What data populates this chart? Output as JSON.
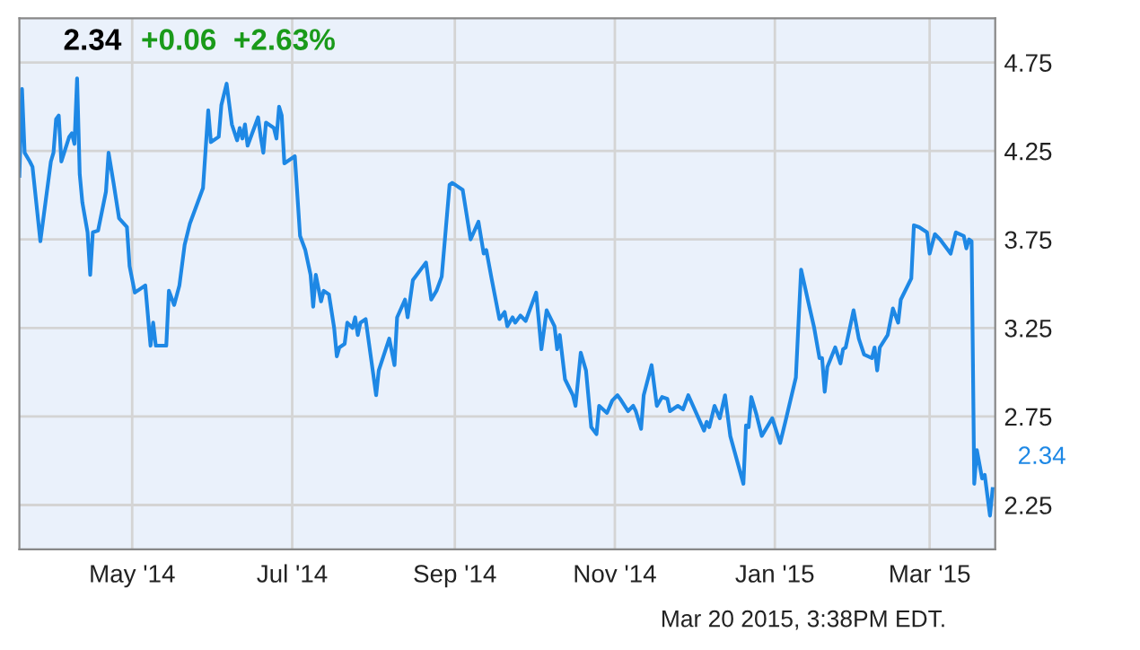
{
  "chart_data": {
    "type": "line",
    "title": "2.34",
    "subtitle": "+0.06  +2.63%",
    "annotations": [
      {
        "text": "2.34",
        "x": "2015-03-25",
        "y": 2.34
      },
      "Mar 20 2015, 3:38PM EDT."
    ],
    "series": [
      {
        "color": "#1e88e5",
        "x": [
          "2014-03-19",
          "2014-03-20",
          "2014-03-21",
          "2014-03-23",
          "2014-03-24",
          "2014-03-27",
          "2014-03-31",
          "2014-04-01",
          "2014-04-02",
          "2014-04-03",
          "2014-04-04",
          "2014-04-07",
          "2014-04-08",
          "2014-04-09",
          "2014-04-10",
          "2014-04-11",
          "2014-04-12",
          "2014-04-14",
          "2014-04-15",
          "2014-04-16",
          "2014-04-18",
          "2014-04-21",
          "2014-04-22",
          "2014-04-24",
          "2014-04-26",
          "2014-04-29",
          "2014-04-30",
          "2014-05-02",
          "2014-05-06",
          "2014-05-08",
          "2014-05-09",
          "2014-05-10",
          "2014-05-14",
          "2014-05-15",
          "2014-05-17",
          "2014-05-19",
          "2014-05-21",
          "2014-05-23",
          "2014-05-28",
          "2014-05-30",
          "2014-05-31",
          "2014-06-03",
          "2014-06-04",
          "2014-06-06",
          "2014-06-08",
          "2014-06-10",
          "2014-06-11",
          "2014-06-12",
          "2014-06-13",
          "2014-06-14",
          "2014-06-18",
          "2014-06-19",
          "2014-06-20",
          "2014-06-21",
          "2014-06-24",
          "2014-06-25",
          "2014-06-26",
          "2014-06-27",
          "2014-06-28",
          "2014-07-02",
          "2014-07-04",
          "2014-07-06",
          "2014-07-08",
          "2014-07-09",
          "2014-07-10",
          "2014-07-12",
          "2014-07-13",
          "2014-07-15",
          "2014-07-17",
          "2014-07-18",
          "2014-07-19",
          "2014-07-21",
          "2014-07-22",
          "2014-07-24",
          "2014-07-25",
          "2014-07-26",
          "2014-07-27",
          "2014-07-29",
          "2014-08-02",
          "2014-08-03",
          "2014-08-07",
          "2014-08-09",
          "2014-08-10",
          "2014-08-13",
          "2014-08-14",
          "2014-08-16",
          "2014-08-21",
          "2014-08-23",
          "2014-08-25",
          "2014-08-27",
          "2014-08-30",
          "2014-08-31",
          "2014-09-04",
          "2014-09-07",
          "2014-09-10",
          "2014-09-12",
          "2014-09-13",
          "2014-09-15",
          "2014-09-18",
          "2014-09-20",
          "2014-09-21",
          "2014-09-23",
          "2014-09-24",
          "2014-09-26",
          "2014-09-28",
          "2014-10-02",
          "2014-10-04",
          "2014-10-06",
          "2014-10-09",
          "2014-10-10",
          "2014-10-11",
          "2014-10-13",
          "2014-10-16",
          "2014-10-17",
          "2014-10-19",
          "2014-10-21",
          "2014-10-23",
          "2014-10-25",
          "2014-10-26",
          "2014-10-29",
          "2014-10-31",
          "2014-11-02",
          "2014-11-03",
          "2014-11-06",
          "2014-11-08",
          "2014-11-09",
          "2014-11-11",
          "2014-11-12",
          "2014-11-15",
          "2014-11-17",
          "2014-11-19",
          "2014-11-21",
          "2014-11-22",
          "2014-11-25",
          "2014-11-27",
          "2014-11-29",
          "2014-12-02",
          "2014-12-05",
          "2014-12-06",
          "2014-12-07",
          "2014-12-09",
          "2014-12-11",
          "2014-12-13",
          "2014-12-15",
          "2014-12-20",
          "2014-12-21",
          "2014-12-22",
          "2014-12-23",
          "2014-12-25",
          "2014-12-27",
          "2014-12-31",
          "2015-01-03",
          "2015-01-05",
          "2015-01-09",
          "2015-01-11",
          "2015-01-14",
          "2015-01-16",
          "2015-01-18",
          "2015-01-19",
          "2015-01-20",
          "2015-01-21",
          "2015-01-24",
          "2015-01-26",
          "2015-01-27",
          "2015-01-28",
          "2015-01-31",
          "2015-02-02",
          "2015-02-04",
          "2015-02-07",
          "2015-02-08",
          "2015-02-09",
          "2015-02-10",
          "2015-02-13",
          "2015-02-15",
          "2015-02-17",
          "2015-02-18",
          "2015-02-22",
          "2015-02-23",
          "2015-02-25",
          "2015-02-28",
          "2015-03-01",
          "2015-03-03",
          "2015-03-05",
          "2015-03-08",
          "2015-03-09",
          "2015-03-11",
          "2015-03-14",
          "2015-03-15",
          "2015-03-16",
          "2015-03-17",
          "2015-03-18",
          "2015-03-19",
          "2015-03-21",
          "2015-03-22",
          "2015-03-24",
          "2015-03-25"
        ],
        "values": [
          4.11,
          4.6,
          4.24,
          4.19,
          4.16,
          3.74,
          4.19,
          4.24,
          4.43,
          4.45,
          4.19,
          4.33,
          4.35,
          4.29,
          4.66,
          4.12,
          3.96,
          3.79,
          3.55,
          3.79,
          3.8,
          4.02,
          4.24,
          4.06,
          3.87,
          3.82,
          3.6,
          3.45,
          3.49,
          3.15,
          3.28,
          3.15,
          3.15,
          3.46,
          3.38,
          3.49,
          3.72,
          3.84,
          4.04,
          4.48,
          4.3,
          4.33,
          4.51,
          4.63,
          4.4,
          4.31,
          4.38,
          4.32,
          4.4,
          4.28,
          4.44,
          4.33,
          4.24,
          4.41,
          4.38,
          4.32,
          4.5,
          4.45,
          4.18,
          4.22,
          3.77,
          3.69,
          3.55,
          3.37,
          3.55,
          3.4,
          3.46,
          3.44,
          3.25,
          3.09,
          3.14,
          3.16,
          3.28,
          3.25,
          3.31,
          3.21,
          3.28,
          3.3,
          2.87,
          3.01,
          3.19,
          3.04,
          3.31,
          3.41,
          3.31,
          3.52,
          3.62,
          3.41,
          3.46,
          3.54,
          4.06,
          4.07,
          4.03,
          3.75,
          3.85,
          3.67,
          3.69,
          3.53,
          3.3,
          3.34,
          3.26,
          3.31,
          3.28,
          3.32,
          3.29,
          3.45,
          3.13,
          3.35,
          3.26,
          3.13,
          3.21,
          2.96,
          2.87,
          2.81,
          3.11,
          3.01,
          2.69,
          2.65,
          2.81,
          2.77,
          2.84,
          2.87,
          2.85,
          2.78,
          2.81,
          2.78,
          2.68,
          2.87,
          3.04,
          2.81,
          2.86,
          2.85,
          2.78,
          2.81,
          2.79,
          2.87,
          2.77,
          2.67,
          2.72,
          2.69,
          2.81,
          2.74,
          2.87,
          2.64,
          2.37,
          2.7,
          2.69,
          2.86,
          2.76,
          2.64,
          2.74,
          2.6,
          2.72,
          2.97,
          3.58,
          3.38,
          3.25,
          3.08,
          3.08,
          2.89,
          3.03,
          3.14,
          3.05,
          3.13,
          3.14,
          3.35,
          3.19,
          3.1,
          3.08,
          3.14,
          3.01,
          3.14,
          3.21,
          3.36,
          3.28,
          3.41,
          3.53,
          3.83,
          3.82,
          3.79,
          3.67,
          3.78,
          3.75,
          3.69,
          3.67,
          3.79,
          3.77,
          3.7,
          3.75,
          3.74,
          2.37,
          2.56,
          2.4,
          2.42,
          2.19,
          2.34
        ]
      }
    ],
    "xlim": [
      "2014-03-19",
      "2015-03-26"
    ],
    "ylim": [
      2.0,
      5.0
    ],
    "xticks": [
      {
        "value": "2014-05-01",
        "label": "May '14"
      },
      {
        "value": "2014-07-01",
        "label": "Jul '14"
      },
      {
        "value": "2014-09-01",
        "label": "Sep '14"
      },
      {
        "value": "2014-11-01",
        "label": "Nov '14"
      },
      {
        "value": "2015-01-01",
        "label": "Jan '15"
      },
      {
        "value": "2015-03-01",
        "label": "Mar '15"
      }
    ],
    "yticks": [
      2.25,
      2.75,
      3.25,
      3.75,
      4.25,
      4.75
    ],
    "grid": true,
    "marker": "none",
    "line_style": "solid",
    "legend": false
  }
}
